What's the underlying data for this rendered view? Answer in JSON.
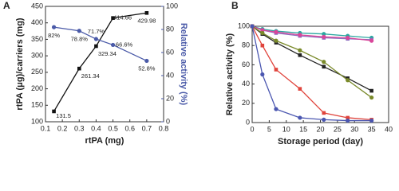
{
  "chart_data": [
    {
      "type": "line",
      "panel": "A",
      "x_label": "rtPA (mg)",
      "y_label": "rtPA (μg)/carriers (mg)",
      "y2_label": "Relative activity (%)",
      "x": [
        0.15,
        0.3,
        0.4,
        0.5,
        0.7
      ],
      "xlim": [
        0.1,
        0.8
      ],
      "xticks": [
        0.1,
        0.2,
        0.3,
        0.4,
        0.5,
        0.6,
        0.7,
        0.8
      ],
      "ylim": [
        100,
        450
      ],
      "yticks": [
        100,
        150,
        200,
        250,
        300,
        350,
        400,
        450
      ],
      "y2lim": [
        0,
        100
      ],
      "y2ticks": [
        0,
        20,
        40,
        60,
        80,
        100
      ],
      "series": [
        {
          "color": "#111111",
          "marker": "square",
          "values": [
            131.5,
            261.34,
            329.34,
            414.66,
            429.98
          ]
        },
        {
          "color": "#4a5aa8",
          "marker": "circle",
          "axis": "y2",
          "values": [
            82,
            78.8,
            71.7,
            66.6,
            52.8
          ],
          "value_labels": [
            "82%",
            "78.8%",
            "71.7%",
            "66.6%",
            "52.8%"
          ]
        }
      ]
    },
    {
      "type": "line",
      "panel": "B",
      "x_label": "Storage period (day)",
      "y_label": "Relative activity (%)",
      "x": [
        0,
        3,
        7,
        14,
        21,
        28,
        35
      ],
      "xlim": [
        0,
        40
      ],
      "xticks": [
        0,
        5,
        10,
        15,
        20,
        25,
        30,
        35,
        40
      ],
      "ylim": [
        0,
        100
      ],
      "yticks": [
        0,
        20,
        40,
        60,
        80,
        100
      ],
      "series": [
        {
          "color": "#2aa7a0",
          "marker": "circle",
          "values": [
            100,
            97,
            95,
            93,
            92,
            90,
            88
          ]
        },
        {
          "color": "#8a6fc0",
          "marker": "square",
          "values": [
            100,
            96,
            93,
            90,
            88,
            87,
            86
          ]
        },
        {
          "color": "#d9469a",
          "marker": "circle",
          "values": [
            100,
            96,
            94,
            91,
            89,
            88,
            85
          ]
        },
        {
          "color": "#222222",
          "marker": "square",
          "values": [
            100,
            92,
            83,
            70,
            58,
            46,
            33
          ]
        },
        {
          "color": "#7a8a2a",
          "marker": "circle",
          "values": [
            100,
            93,
            85,
            75,
            63,
            44,
            26
          ]
        },
        {
          "color": "#e0443c",
          "marker": "square",
          "values": [
            100,
            80,
            55,
            35,
            10,
            5,
            3
          ]
        },
        {
          "color": "#4a56b0",
          "marker": "circle",
          "values": [
            100,
            50,
            14,
            5,
            3,
            2,
            2
          ]
        }
      ]
    }
  ]
}
